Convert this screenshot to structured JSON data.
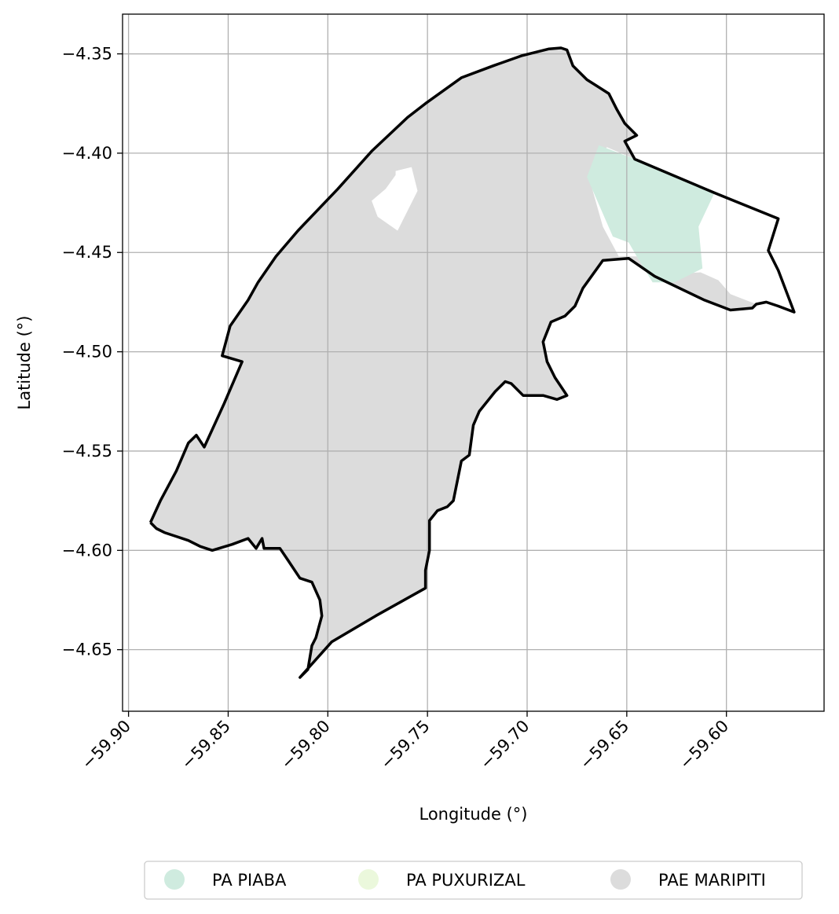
{
  "chart_data": {
    "type": "map",
    "xlabel": "Longitude (°)",
    "ylabel": "Latitude (°)",
    "xlim": [
      -59.903,
      -59.551
    ],
    "ylim": [
      -4.681,
      -4.33
    ],
    "grid": true,
    "x_ticks": [
      {
        "value": -59.9,
        "label": "−59.90"
      },
      {
        "value": -59.85,
        "label": "−59.85"
      },
      {
        "value": -59.8,
        "label": "−59.80"
      },
      {
        "value": -59.75,
        "label": "−59.75"
      },
      {
        "value": -59.7,
        "label": "−59.70"
      },
      {
        "value": -59.65,
        "label": "−59.65"
      },
      {
        "value": -59.6,
        "label": "−59.60"
      }
    ],
    "y_ticks": [
      {
        "value": -4.35,
        "label": "−4.35"
      },
      {
        "value": -4.4,
        "label": "−4.40"
      },
      {
        "value": -4.45,
        "label": "−4.45"
      },
      {
        "value": -4.5,
        "label": "−4.50"
      },
      {
        "value": -4.55,
        "label": "−4.55"
      },
      {
        "value": -4.6,
        "label": "−4.60"
      },
      {
        "value": -4.65,
        "label": "−4.65"
      }
    ],
    "legend_position": "bottom-center",
    "legend": [
      {
        "label": "PA PIABA",
        "color": "#cfebdf"
      },
      {
        "label": "PA PUXURIZAL",
        "color": "#ebf8dc"
      },
      {
        "label": "PAE MARIPITI",
        "color": "#dcdcdc"
      }
    ],
    "regions": [
      {
        "name": "PAE MARIPITI",
        "color": "#dcdcdc",
        "coords": [
          [
            -59.889,
            -4.586
          ],
          [
            -59.884,
            -4.575
          ],
          [
            -59.876,
            -4.56
          ],
          [
            -59.87,
            -4.546
          ],
          [
            -59.866,
            -4.542
          ],
          [
            -59.862,
            -4.548
          ],
          [
            -59.852,
            -4.526
          ],
          [
            -59.843,
            -4.505
          ],
          [
            -59.853,
            -4.502
          ],
          [
            -59.849,
            -4.487
          ],
          [
            -59.84,
            -4.474
          ],
          [
            -59.835,
            -4.465
          ],
          [
            -59.826,
            -4.452
          ],
          [
            -59.815,
            -4.439
          ],
          [
            -59.795,
            -4.418
          ],
          [
            -59.778,
            -4.399
          ],
          [
            -59.76,
            -4.382
          ],
          [
            -59.751,
            -4.375
          ],
          [
            -59.733,
            -4.362
          ],
          [
            -59.717,
            -4.356
          ],
          [
            -59.703,
            -4.351
          ],
          [
            -59.689,
            -4.3475
          ],
          [
            -59.683,
            -4.347
          ],
          [
            -59.68,
            -4.348
          ],
          [
            -59.677,
            -4.356
          ],
          [
            -59.67,
            -4.363
          ],
          [
            -59.659,
            -4.37
          ],
          [
            -59.655,
            -4.378
          ],
          [
            -59.651,
            -4.385
          ],
          [
            -59.645,
            -4.391
          ],
          [
            -59.651,
            -4.394
          ],
          [
            -59.646,
            -4.403
          ],
          [
            -59.66,
            -4.397
          ],
          [
            -59.669,
            -4.412
          ],
          [
            -59.662,
            -4.437
          ],
          [
            -59.654,
            -4.452
          ],
          [
            -59.645,
            -4.452
          ],
          [
            -59.637,
            -4.465
          ],
          [
            -59.627,
            -4.461
          ],
          [
            -59.613,
            -4.46
          ],
          [
            -59.604,
            -4.464
          ],
          [
            -59.598,
            -4.471
          ],
          [
            -59.585,
            -4.476
          ],
          [
            -59.587,
            -4.478
          ],
          [
            -59.598,
            -4.479
          ],
          [
            -59.611,
            -4.474
          ],
          [
            -59.636,
            -4.462
          ],
          [
            -59.649,
            -4.453
          ],
          [
            -59.662,
            -4.454
          ],
          [
            -59.672,
            -4.468
          ],
          [
            -59.676,
            -4.477
          ],
          [
            -59.681,
            -4.482
          ],
          [
            -59.688,
            -4.485
          ],
          [
            -59.692,
            -4.495
          ],
          [
            -59.69,
            -4.505
          ],
          [
            -59.686,
            -4.513
          ],
          [
            -59.68,
            -4.522
          ],
          [
            -59.685,
            -4.524
          ],
          [
            -59.692,
            -4.522
          ],
          [
            -59.702,
            -4.522
          ],
          [
            -59.708,
            -4.516
          ],
          [
            -59.711,
            -4.515
          ],
          [
            -59.716,
            -4.52
          ],
          [
            -59.724,
            -4.53
          ],
          [
            -59.727,
            -4.537
          ],
          [
            -59.729,
            -4.552
          ],
          [
            -59.733,
            -4.555
          ],
          [
            -59.735,
            -4.565
          ],
          [
            -59.737,
            -4.575
          ],
          [
            -59.74,
            -4.578
          ],
          [
            -59.745,
            -4.58
          ],
          [
            -59.749,
            -4.585
          ],
          [
            -59.749,
            -4.6
          ],
          [
            -59.751,
            -4.61
          ],
          [
            -59.751,
            -4.619
          ],
          [
            -59.776,
            -4.633
          ],
          [
            -59.798,
            -4.646
          ],
          [
            -59.814,
            -4.664
          ],
          [
            -59.81,
            -4.66
          ],
          [
            -59.808,
            -4.648
          ],
          [
            -59.806,
            -4.644
          ],
          [
            -59.803,
            -4.633
          ],
          [
            -59.804,
            -4.625
          ],
          [
            -59.808,
            -4.616
          ],
          [
            -59.814,
            -4.614
          ],
          [
            -59.82,
            -4.605
          ],
          [
            -59.824,
            -4.599
          ],
          [
            -59.832,
            -4.599
          ],
          [
            -59.833,
            -4.594
          ],
          [
            -59.836,
            -4.599
          ],
          [
            -59.84,
            -4.594
          ],
          [
            -59.848,
            -4.597
          ],
          [
            -59.858,
            -4.6
          ],
          [
            -59.864,
            -4.598
          ],
          [
            -59.87,
            -4.595
          ],
          [
            -59.876,
            -4.593
          ],
          [
            -59.882,
            -4.591
          ],
          [
            -59.886,
            -4.589
          ]
        ]
      },
      {
        "name": "PA PIABA",
        "color": "#cfebdf",
        "coords": [
          [
            -59.664,
            -4.396
          ],
          [
            -59.646,
            -4.403
          ],
          [
            -59.606,
            -4.42
          ],
          [
            -59.614,
            -4.437
          ],
          [
            -59.612,
            -4.458
          ],
          [
            -59.626,
            -4.465
          ],
          [
            -59.637,
            -4.465
          ],
          [
            -59.645,
            -4.452
          ],
          [
            -59.649,
            -4.445
          ],
          [
            -59.657,
            -4.442
          ],
          [
            -59.67,
            -4.412
          ]
        ]
      },
      {
        "name": "White gap",
        "color": "#ffffff",
        "coords": [
          [
            -59.766,
            -4.409
          ],
          [
            -59.758,
            -4.407
          ],
          [
            -59.755,
            -4.419
          ],
          [
            -59.765,
            -4.439
          ],
          [
            -59.775,
            -4.432
          ],
          [
            -59.778,
            -4.424
          ],
          [
            -59.771,
            -4.418
          ],
          [
            -59.766,
            -4.411
          ]
        ]
      }
    ],
    "boundary": [
      [
        -59.889,
        -4.586
      ],
      [
        -59.884,
        -4.575
      ],
      [
        -59.876,
        -4.56
      ],
      [
        -59.87,
        -4.546
      ],
      [
        -59.866,
        -4.542
      ],
      [
        -59.862,
        -4.548
      ],
      [
        -59.852,
        -4.526
      ],
      [
        -59.843,
        -4.505
      ],
      [
        -59.853,
        -4.502
      ],
      [
        -59.849,
        -4.487
      ],
      [
        -59.84,
        -4.474
      ],
      [
        -59.835,
        -4.465
      ],
      [
        -59.826,
        -4.452
      ],
      [
        -59.815,
        -4.439
      ],
      [
        -59.795,
        -4.418
      ],
      [
        -59.778,
        -4.399
      ],
      [
        -59.76,
        -4.382
      ],
      [
        -59.751,
        -4.375
      ],
      [
        -59.733,
        -4.362
      ],
      [
        -59.717,
        -4.356
      ],
      [
        -59.703,
        -4.351
      ],
      [
        -59.689,
        -4.3475
      ],
      [
        -59.683,
        -4.347
      ],
      [
        -59.68,
        -4.348
      ],
      [
        -59.677,
        -4.356
      ],
      [
        -59.67,
        -4.363
      ],
      [
        -59.659,
        -4.37
      ],
      [
        -59.655,
        -4.378
      ],
      [
        -59.651,
        -4.385
      ],
      [
        -59.645,
        -4.391
      ],
      [
        -59.651,
        -4.394
      ],
      [
        -59.646,
        -4.403
      ],
      [
        -59.606,
        -4.42
      ],
      [
        -59.574,
        -4.433
      ],
      [
        -59.579,
        -4.449
      ],
      [
        -59.574,
        -4.459
      ],
      [
        -59.566,
        -4.48
      ],
      [
        -59.574,
        -4.477
      ],
      [
        -59.58,
        -4.475
      ],
      [
        -59.585,
        -4.476
      ],
      [
        -59.587,
        -4.478
      ],
      [
        -59.598,
        -4.479
      ],
      [
        -59.611,
        -4.474
      ],
      [
        -59.636,
        -4.462
      ],
      [
        -59.649,
        -4.453
      ],
      [
        -59.662,
        -4.454
      ],
      [
        -59.672,
        -4.468
      ],
      [
        -59.676,
        -4.477
      ],
      [
        -59.681,
        -4.482
      ],
      [
        -59.688,
        -4.485
      ],
      [
        -59.692,
        -4.495
      ],
      [
        -59.69,
        -4.505
      ],
      [
        -59.686,
        -4.513
      ],
      [
        -59.68,
        -4.522
      ],
      [
        -59.685,
        -4.524
      ],
      [
        -59.692,
        -4.522
      ],
      [
        -59.702,
        -4.522
      ],
      [
        -59.708,
        -4.516
      ],
      [
        -59.711,
        -4.515
      ],
      [
        -59.716,
        -4.52
      ],
      [
        -59.724,
        -4.53
      ],
      [
        -59.727,
        -4.537
      ],
      [
        -59.729,
        -4.552
      ],
      [
        -59.733,
        -4.555
      ],
      [
        -59.735,
        -4.565
      ],
      [
        -59.737,
        -4.575
      ],
      [
        -59.74,
        -4.578
      ],
      [
        -59.745,
        -4.58
      ],
      [
        -59.749,
        -4.585
      ],
      [
        -59.749,
        -4.6
      ],
      [
        -59.751,
        -4.61
      ],
      [
        -59.751,
        -4.619
      ],
      [
        -59.776,
        -4.633
      ],
      [
        -59.798,
        -4.646
      ],
      [
        -59.814,
        -4.664
      ],
      [
        -59.81,
        -4.66
      ],
      [
        -59.808,
        -4.648
      ],
      [
        -59.806,
        -4.644
      ],
      [
        -59.803,
        -4.633
      ],
      [
        -59.804,
        -4.625
      ],
      [
        -59.808,
        -4.616
      ],
      [
        -59.814,
        -4.614
      ],
      [
        -59.82,
        -4.605
      ],
      [
        -59.824,
        -4.599
      ],
      [
        -59.832,
        -4.599
      ],
      [
        -59.833,
        -4.594
      ],
      [
        -59.836,
        -4.599
      ],
      [
        -59.84,
        -4.594
      ],
      [
        -59.848,
        -4.597
      ],
      [
        -59.858,
        -4.6
      ],
      [
        -59.864,
        -4.598
      ],
      [
        -59.87,
        -4.595
      ],
      [
        -59.876,
        -4.593
      ],
      [
        -59.882,
        -4.591
      ],
      [
        -59.886,
        -4.589
      ],
      [
        -59.889,
        -4.586
      ]
    ]
  }
}
